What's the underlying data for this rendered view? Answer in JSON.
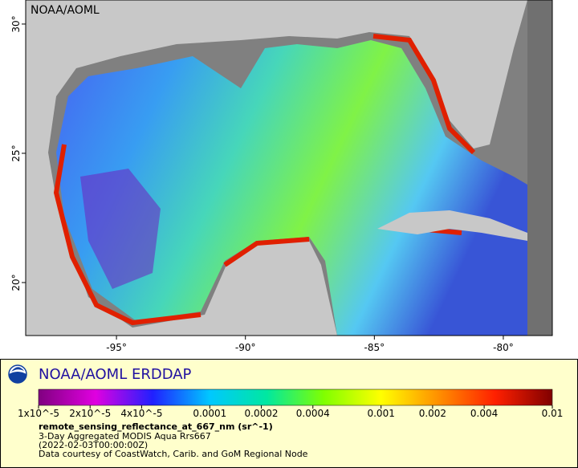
{
  "map": {
    "attribution": "NOAA/AOML",
    "xlim": [
      -98.52,
      -78.1
    ],
    "ylim": [
      17.95,
      30.93
    ],
    "xticks": [
      {
        "value": -95,
        "label": "-95°"
      },
      {
        "value": -90,
        "label": "-90°"
      },
      {
        "value": -85,
        "label": "-85°"
      },
      {
        "value": -80,
        "label": "-80°"
      }
    ],
    "yticks": [
      {
        "value": 20,
        "label": "20°"
      },
      {
        "value": 25,
        "label": "25°"
      },
      {
        "value": 30,
        "label": "30°"
      }
    ]
  },
  "legend": {
    "title": "NOAA/AOML ERDDAP",
    "variable": "remote_sensing_reflectance_at_667_nm (sr^-1)",
    "dataset": "3-Day Aggregated MODIS Aqua Rrs667",
    "time": "(2022-02-03T00:00:00Z)",
    "credit": "Data courtesy of CoastWatch, Carib. and GoM Regional Node",
    "colorbar": {
      "range": [
        1e-05,
        0.01
      ],
      "log": true,
      "colors": [
        "#800080",
        "#e000e0",
        "#2020ff",
        "#00c8ff",
        "#00e8a0",
        "#80ff00",
        "#ffff00",
        "#ff9000",
        "#ff2000",
        "#800000"
      ],
      "ticks": [
        {
          "value": 1e-05,
          "label": "1x10^-5"
        },
        {
          "value": 2e-05,
          "label": "2x10^-5"
        },
        {
          "value": 4e-05,
          "label": "4x10^-5"
        },
        0.0001,
        0.0002,
        0.0004,
        0.001,
        0.002,
        0.004,
        0.01
      ]
    }
  }
}
